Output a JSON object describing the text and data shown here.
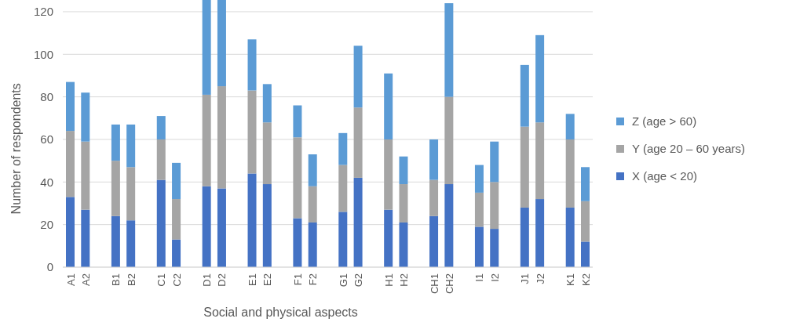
{
  "chart_data": {
    "type": "bar",
    "stacked": true,
    "xlabel": "Social and physical aspects",
    "ylabel": "Number of respondents",
    "categories": [
      "A1",
      "A2",
      null,
      "B1",
      "B2",
      null,
      "C1",
      "C2",
      null,
      "D1",
      "D2",
      null,
      "E1",
      "E2",
      null,
      "F1",
      "F2",
      null,
      "G1",
      "G2",
      null,
      "H1",
      "H2",
      null,
      "CH1",
      "CH2",
      null,
      "I1",
      "I2",
      null,
      "J1",
      "J2",
      null,
      "K1",
      "K2"
    ],
    "series": [
      {
        "name": "X (age < 20)",
        "color": "#4472c4",
        "values": [
          33,
          27,
          null,
          24,
          22,
          null,
          41,
          13,
          null,
          38,
          37,
          null,
          44,
          39,
          null,
          23,
          21,
          null,
          26,
          42,
          null,
          27,
          21,
          null,
          24,
          39,
          null,
          19,
          18,
          null,
          28,
          32,
          null,
          28,
          12
        ]
      },
      {
        "name": "Y (age 20 – 60 years)",
        "color": "#a5a5a5",
        "values": [
          31,
          32,
          null,
          26,
          25,
          null,
          19,
          19,
          null,
          43,
          48,
          null,
          39,
          29,
          null,
          38,
          17,
          null,
          22,
          33,
          null,
          33,
          18,
          null,
          17,
          41,
          null,
          16,
          22,
          null,
          38,
          36,
          null,
          32,
          19
        ]
      },
      {
        "name": "Z (age > 60)",
        "color": "#5b9bd5",
        "values": [
          23,
          23,
          null,
          17,
          20,
          null,
          11,
          17,
          null,
          45,
          41,
          null,
          24,
          18,
          null,
          15,
          15,
          null,
          15,
          29,
          null,
          31,
          13,
          null,
          19,
          44,
          null,
          13,
          19,
          null,
          29,
          41,
          null,
          12,
          16
        ]
      }
    ],
    "ylim": [
      0,
      126
    ],
    "yticks": [
      0,
      20,
      40,
      60,
      80,
      100,
      120
    ],
    "grid": "y",
    "legend": "right"
  }
}
